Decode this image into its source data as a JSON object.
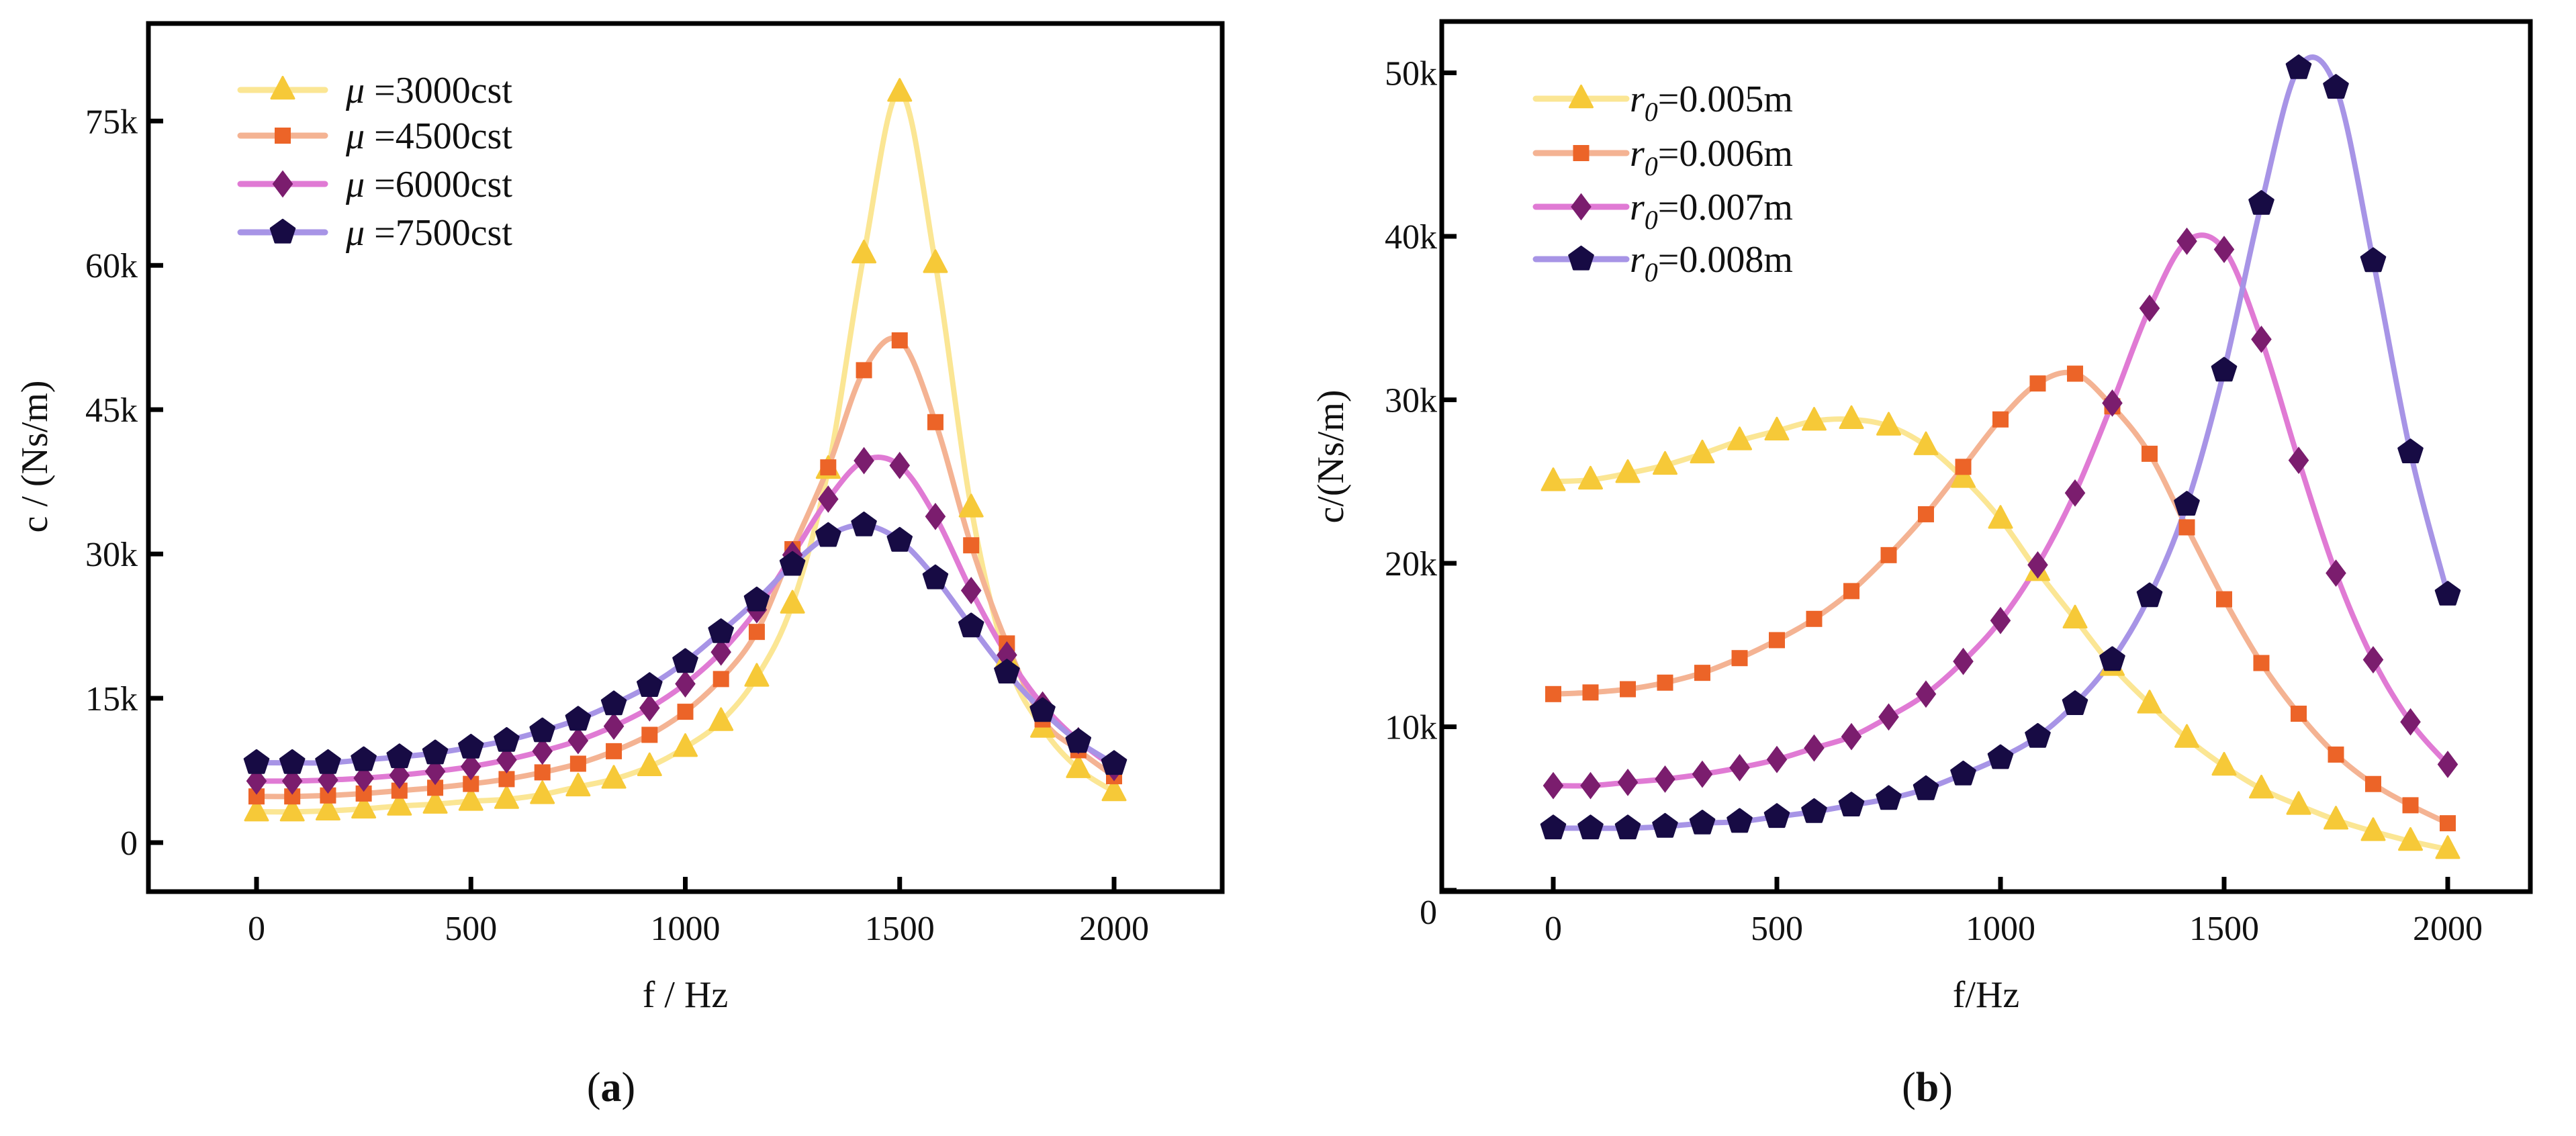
{
  "chart_data": [
    {
      "type": "line",
      "caption": "(a)",
      "caption_letter": "a",
      "xlabel": "f / Hz",
      "ylabel": "c / (Ns/m)",
      "xlim": [
        -250,
        2250
      ],
      "ylim": [
        -2000,
        80000
      ],
      "x_ticks": [
        0,
        500,
        1000,
        1500,
        2000
      ],
      "x_tick_labels": [
        "0",
        "500",
        "1000",
        "1500",
        "2000"
      ],
      "y_ticks": [
        0,
        15000,
        30000,
        45000,
        60000,
        75000
      ],
      "y_tick_labels": [
        "0",
        "15k",
        "30k",
        "45k",
        "60k",
        "75k"
      ],
      "legend_position": "top-left",
      "x": [
        0,
        83.3,
        166.7,
        250,
        333.3,
        416.7,
        500,
        583.3,
        666.7,
        750,
        833.3,
        916.7,
        1000,
        1083.3,
        1166.7,
        1250,
        1333.3,
        1416.7,
        1500,
        1583.3,
        1666.7,
        1750,
        1833.3,
        1916.7,
        2000
      ],
      "series": [
        {
          "name": "μ =3000cst",
          "legend_prefix": "μ",
          "legend_text": "=3000cst",
          "marker": "triangle",
          "line_color": "#fbe694",
          "marker_color": "#f6c938",
          "values": [
            3200,
            3200,
            3300,
            3500,
            3800,
            4000,
            4300,
            4500,
            5000,
            5800,
            6600,
            7900,
            9900,
            12600,
            17200,
            24800,
            38800,
            61200,
            78000,
            60200,
            34800,
            19000,
            11900,
            7700,
            5300
          ]
        },
        {
          "name": "μ =4500cst",
          "legend_prefix": "μ",
          "legend_text": "=4500cst",
          "marker": "square",
          "line_color": "#f4b393",
          "marker_color": "#ec6428",
          "values": [
            4800,
            4800,
            4900,
            5100,
            5400,
            5700,
            6100,
            6600,
            7300,
            8200,
            9500,
            11200,
            13600,
            17000,
            21900,
            30500,
            39000,
            49100,
            52200,
            43700,
            30900,
            20700,
            12800,
            9600,
            6900
          ]
        },
        {
          "name": "μ =6000cst",
          "legend_prefix": "μ",
          "legend_text": "=6000cst",
          "marker": "diamond",
          "line_color": "#e07ad4",
          "marker_color": "#7b1d6e",
          "values": [
            6400,
            6400,
            6500,
            6700,
            7000,
            7400,
            7900,
            8600,
            9500,
            10600,
            12100,
            14000,
            16500,
            19800,
            24200,
            29900,
            35700,
            39700,
            39200,
            33900,
            26200,
            19500,
            14300,
            10600,
            7800
          ]
        },
        {
          "name": "μ =7500cst",
          "legend_prefix": "μ",
          "legend_text": "=7500cst",
          "marker": "pentagon",
          "line_color": "#a794e6",
          "marker_color": "#170b44",
          "values": [
            8300,
            8300,
            8300,
            8600,
            8900,
            9300,
            9900,
            10600,
            11600,
            12800,
            14400,
            16300,
            18800,
            21900,
            25200,
            28900,
            31900,
            33000,
            31400,
            27500,
            22500,
            17700,
            13700,
            10500,
            8200
          ]
        }
      ]
    },
    {
      "type": "line",
      "caption": "(b)",
      "caption_letter": "b",
      "xlabel": "f/Hz",
      "ylabel": "c/(Ns/m)",
      "xlim": [
        -250,
        2250
      ],
      "ylim": [
        0,
        53000
      ],
      "x_ticks": [
        0,
        500,
        1000,
        1500,
        2000
      ],
      "x_tick_labels": [
        "0",
        "500",
        "1000",
        "1500",
        "2000"
      ],
      "y_ticks": [
        0,
        10000,
        20000,
        30000,
        40000,
        50000
      ],
      "y_tick_labels": [
        "0",
        "10k",
        "20k",
        "30k",
        "40k",
        "50k"
      ],
      "legend_position": "top-left",
      "x": [
        0,
        83.3,
        166.7,
        250,
        333.3,
        416.7,
        500,
        583.3,
        666.7,
        750,
        833.3,
        916.7,
        1000,
        1083.3,
        1166.7,
        1250,
        1333.3,
        1416.7,
        1500,
        1583.3,
        1666.7,
        1750,
        1833.3,
        1916.7,
        2000
      ],
      "series": [
        {
          "name": "r0=0.005m",
          "legend_prefix": "r",
          "legend_sub": "0",
          "legend_text": "=0.005m",
          "marker": "triangle",
          "line_color": "#fbe694",
          "marker_color": "#f6c938",
          "values": [
            25000,
            25100,
            25500,
            26000,
            26700,
            27500,
            28100,
            28700,
            28800,
            28400,
            27200,
            25200,
            22700,
            19500,
            16600,
            13700,
            11400,
            9300,
            7600,
            6200,
            5200,
            4300,
            3600,
            3000,
            2500
          ]
        },
        {
          "name": "r0=0.006m",
          "legend_prefix": "r",
          "legend_sub": "0",
          "legend_text": "=0.006m",
          "marker": "square",
          "line_color": "#f4b393",
          "marker_color": "#ec6428",
          "values": [
            12000,
            12100,
            12300,
            12700,
            13300,
            14200,
            15300,
            16600,
            18300,
            20500,
            23000,
            25900,
            28800,
            31000,
            31600,
            29600,
            26700,
            22200,
            17800,
            13900,
            10800,
            8300,
            6500,
            5200,
            4100
          ]
        },
        {
          "name": "r0=0.007m",
          "legend_prefix": "r",
          "legend_sub": "0",
          "legend_text": "=0.007m",
          "marker": "diamond",
          "line_color": "#e07ad4",
          "marker_color": "#7b1d6e",
          "values": [
            6400,
            6400,
            6600,
            6800,
            7100,
            7500,
            8000,
            8700,
            9400,
            10600,
            12000,
            14000,
            16500,
            19900,
            24300,
            29800,
            35600,
            39700,
            39200,
            33700,
            26300,
            19400,
            14100,
            10300,
            7700
          ]
        },
        {
          "name": "r0=0.008m",
          "legend_prefix": "r",
          "legend_sub": "0",
          "legend_text": "=0.008m",
          "marker": "pentagon",
          "line_color": "#a794e6",
          "marker_color": "#170b44",
          "values": [
            3800,
            3800,
            3800,
            3900,
            4100,
            4200,
            4500,
            4800,
            5200,
            5600,
            6200,
            7100,
            8100,
            9400,
            11400,
            14100,
            18000,
            23600,
            31800,
            42000,
            50300,
            49100,
            38500,
            26800,
            18100
          ]
        }
      ]
    }
  ]
}
